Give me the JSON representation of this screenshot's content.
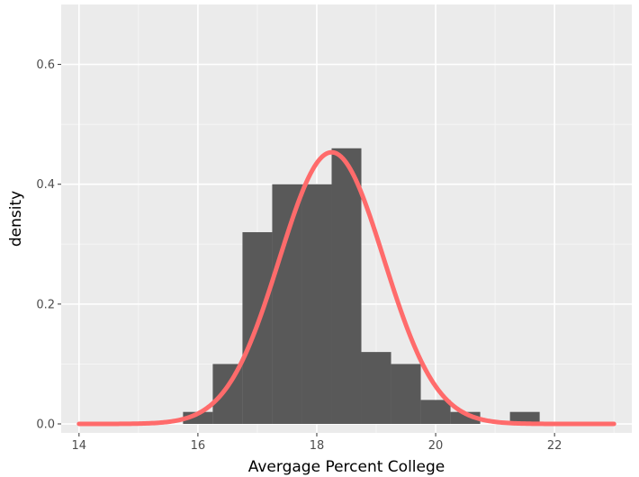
{
  "chart_data": {
    "type": "bar",
    "title": "",
    "xlabel": "Avergage Percent College",
    "ylabel": "density",
    "xlim": [
      13.7,
      23.3
    ],
    "ylim": [
      -0.015,
      0.7
    ],
    "x_ticks": [
      14,
      16,
      18,
      20,
      22
    ],
    "x_tick_labels": [
      "14",
      "16",
      "18",
      "20",
      "22"
    ],
    "y_ticks": [
      0.0,
      0.2,
      0.4,
      0.6
    ],
    "y_tick_labels": [
      "0.0",
      "0.2",
      "0.4",
      "0.6"
    ],
    "histogram": {
      "bin_width": 0.5,
      "bins": [
        {
          "x_start": 15.75,
          "x_end": 16.25,
          "density": 0.02
        },
        {
          "x_start": 16.25,
          "x_end": 16.75,
          "density": 0.1
        },
        {
          "x_start": 16.75,
          "x_end": 17.25,
          "density": 0.32
        },
        {
          "x_start": 17.25,
          "x_end": 17.75,
          "density": 0.4
        },
        {
          "x_start": 17.75,
          "x_end": 18.25,
          "density": 0.4
        },
        {
          "x_start": 18.25,
          "x_end": 18.75,
          "density": 0.46
        },
        {
          "x_start": 18.75,
          "x_end": 19.25,
          "density": 0.12
        },
        {
          "x_start": 19.25,
          "x_end": 19.75,
          "density": 0.1
        },
        {
          "x_start": 19.75,
          "x_end": 20.25,
          "density": 0.04
        },
        {
          "x_start": 20.25,
          "x_end": 20.75,
          "density": 0.02
        },
        {
          "x_start": 21.25,
          "x_end": 21.75,
          "density": 0.02
        }
      ]
    },
    "normal_curve": {
      "mean": 18.25,
      "sd": 0.88,
      "x_range": [
        14,
        23
      ]
    },
    "grid": true,
    "colors": {
      "panel_background": "#ebebeb",
      "grid_major": "#ffffff",
      "grid_minor": "#f5f5f5",
      "bar_fill": "#595959",
      "curve": "#ff6b6b",
      "tick": "#333333"
    }
  }
}
